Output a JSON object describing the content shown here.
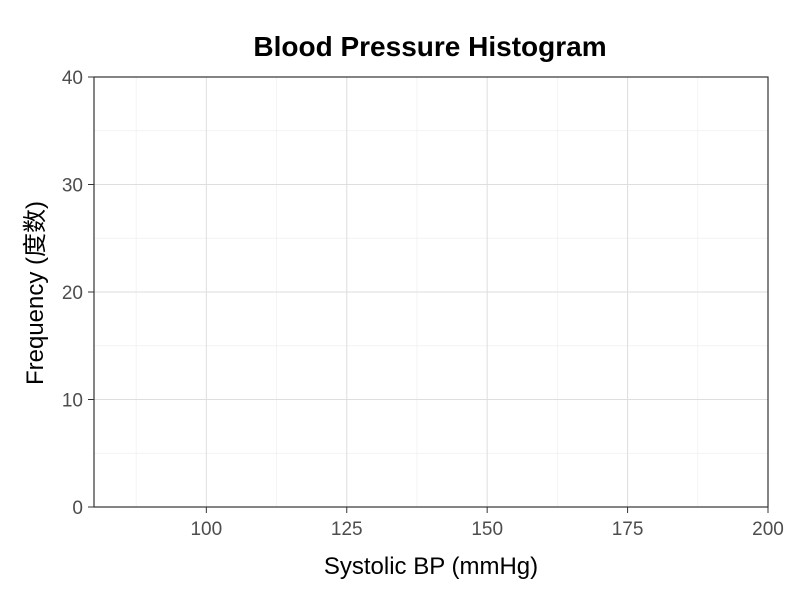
{
  "chart_data": {
    "type": "bar",
    "title": "Blood Pressure Histogram",
    "xlabel": "Systolic BP (mmHg)",
    "ylabel": "Frequency (度数)",
    "xlim": [
      80,
      200
    ],
    "ylim": [
      0,
      40
    ],
    "x_ticks": [
      100,
      125,
      150,
      175,
      200
    ],
    "y_ticks": [
      0,
      10,
      20,
      30,
      40
    ],
    "bins": [],
    "counts": [],
    "grid": true,
    "legend": "none"
  }
}
